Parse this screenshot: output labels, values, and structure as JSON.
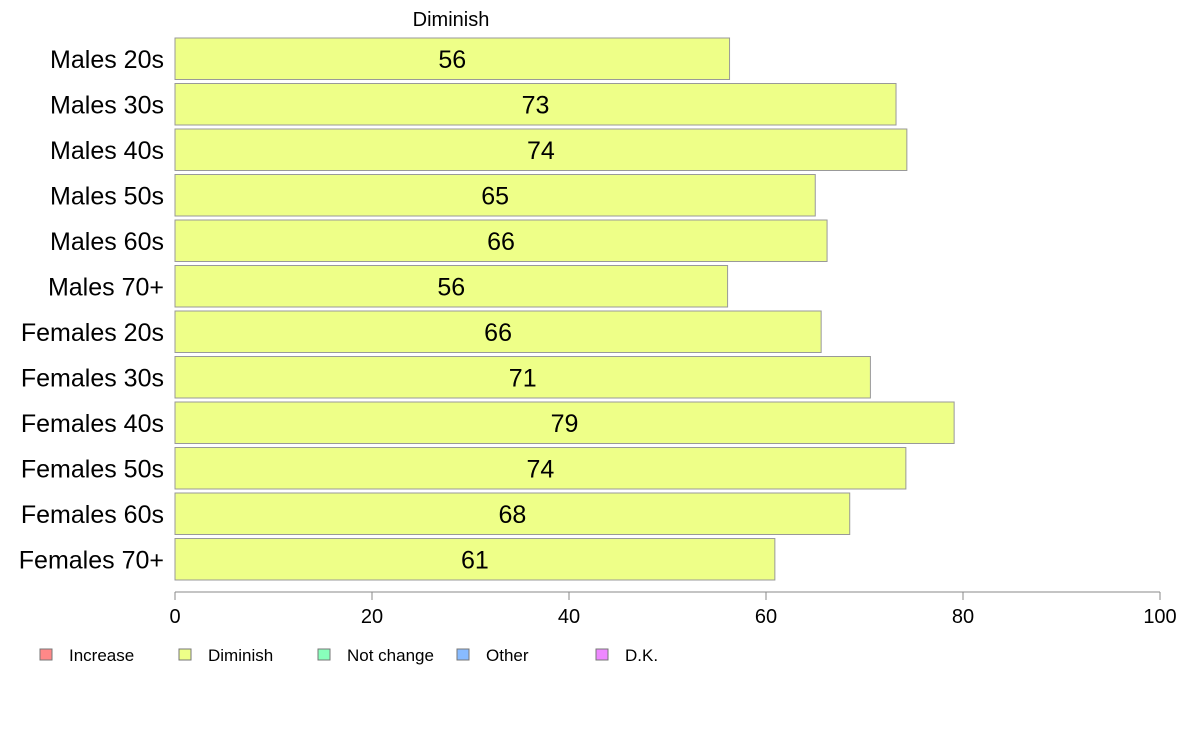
{
  "chart_data": {
    "type": "bar",
    "orientation": "horizontal",
    "title": "",
    "series_title": "Diminish",
    "categories": [
      "Males 20s",
      "Males 30s",
      "Males 40s",
      "Males 50s",
      "Males 60s",
      "Males 70+",
      "Females 20s",
      "Females 30s",
      "Females 40s",
      "Females 50s",
      "Females 60s",
      "Females 70+"
    ],
    "series": [
      {
        "name": "Diminish",
        "color": "#eeff88",
        "values": [
          56.3,
          73.2,
          74.3,
          65.0,
          66.2,
          56.1,
          65.6,
          70.6,
          79.1,
          74.2,
          68.5,
          60.9
        ],
        "labels": [
          "56",
          "73",
          "74",
          "65",
          "66",
          "56",
          "66",
          "71",
          "79",
          "74",
          "68",
          "61"
        ]
      }
    ],
    "xlim": [
      0,
      100
    ],
    "xticks": [
      0,
      20,
      40,
      60,
      80,
      100
    ],
    "xtick_labels": [
      "0",
      "20",
      "40",
      "60",
      "80",
      "100"
    ],
    "grid": false,
    "legend_position": "bottom-left",
    "legend": [
      {
        "label": "Increase",
        "color": "#ff8888"
      },
      {
        "label": "Diminish",
        "color": "#eeff88"
      },
      {
        "label": "Not change",
        "color": "#88ffbb"
      },
      {
        "label": "Other",
        "color": "#88bbff"
      },
      {
        "label": "D.K.",
        "color": "#ee88ff"
      }
    ]
  }
}
